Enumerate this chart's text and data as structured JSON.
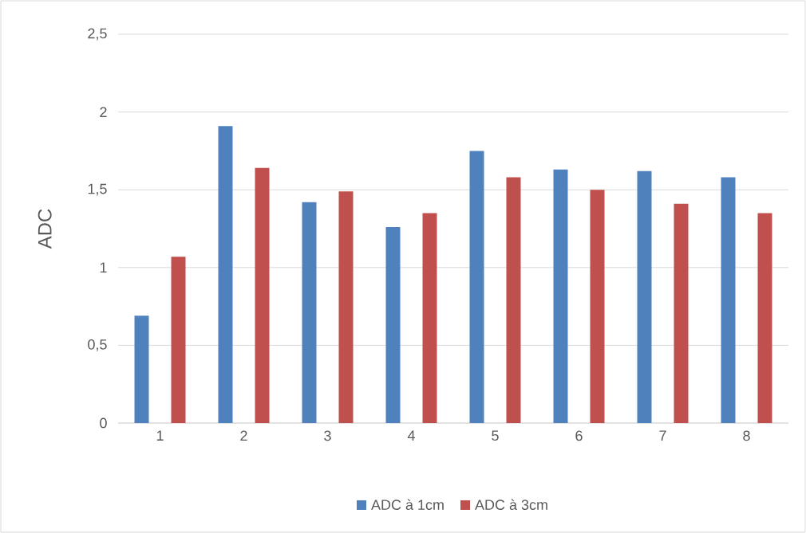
{
  "chart_data": {
    "type": "bar",
    "ylabel": "ADC",
    "categories": [
      "1",
      "2",
      "3",
      "4",
      "5",
      "6",
      "7",
      "8"
    ],
    "series": [
      {
        "name": "ADC à 1cm",
        "color": "#4f81bd",
        "values": [
          0.69,
          1.91,
          1.42,
          1.26,
          1.75,
          1.63,
          1.62,
          1.58
        ]
      },
      {
        "name": "ADC à 3cm",
        "color": "#c0504d",
        "values": [
          1.07,
          1.64,
          1.49,
          1.35,
          1.58,
          1.5,
          1.41,
          1.35
        ]
      }
    ],
    "ylim": [
      0,
      2.5
    ],
    "yticks": [
      0,
      {
        "value": 0.5,
        "label": "0,5"
      },
      1,
      {
        "value": 1.5,
        "label": "1,5"
      },
      2,
      {
        "value": 2.5,
        "label": "2,5"
      }
    ],
    "grid": "y",
    "legend": "bottom"
  }
}
